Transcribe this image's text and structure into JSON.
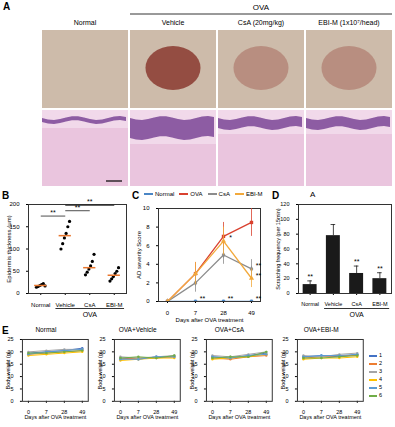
{
  "panel_a": {
    "panel": "A",
    "group": {
      "label": "OVA",
      "columns": [
        "Vehicle",
        "CsA (20mg/kg)",
        "EBI-M (1x10⁷/head)"
      ]
    },
    "columns": [
      "Normal",
      "Vehicle",
      "CsA (20mg/kg)",
      "EBI-M (1x10⁷/head)"
    ]
  },
  "chart_data": [
    {
      "panel": "B",
      "type": "scatter",
      "categories": [
        "Normal",
        "Vehicle",
        "CsA",
        "EBI-M"
      ],
      "points": [
        [
          14,
          16,
          18,
          20,
          22,
          17
        ],
        [
          100,
          112,
          125,
          135,
          150,
          162
        ],
        [
          42,
          48,
          55,
          62,
          72,
          88
        ],
        [
          28,
          33,
          38,
          45,
          50,
          58
        ]
      ],
      "medians": [
        18,
        130,
        58,
        41
      ],
      "color": "#000000",
      "ylim": [
        0,
        200
      ],
      "yticks": [
        0,
        50,
        100,
        150,
        200
      ],
      "y_label": "Epidermis thickness (μm)",
      "group": {
        "label": "OVA",
        "categories": [
          "Vehicle",
          "CsA",
          "EBI-M"
        ]
      },
      "comparisons": [
        {
          "pair": [
            "Normal",
            "Vehicle"
          ],
          "label": "**"
        },
        {
          "pair": [
            "Vehicle",
            "CsA"
          ],
          "label": "**"
        },
        {
          "pair": [
            "Vehicle",
            "EBI-M"
          ],
          "label": "**"
        }
      ]
    },
    {
      "panel": "C",
      "type": "line",
      "categories": [
        "0",
        "7",
        "28",
        "49"
      ],
      "legend": "top",
      "x_label": "Days after OVA treatment",
      "y_label": "AD severity Score",
      "ylim": [
        0,
        10
      ],
      "yticks": [
        0,
        2,
        4,
        6,
        8,
        10
      ],
      "series": [
        {
          "name": "Normal",
          "color": "#4a86c5",
          "marker": "circle",
          "values": [
            0,
            0,
            0,
            0
          ],
          "errors": [
            0,
            0,
            0,
            0
          ]
        },
        {
          "name": "OVA",
          "color": "#d9412f",
          "marker": "square",
          "values": [
            0,
            3,
            7,
            8.5
          ],
          "errors": [
            0,
            1.2,
            1.5,
            1.5
          ]
        },
        {
          "name": "CsA",
          "color": "#8c8c8c",
          "marker": "diamond",
          "values": [
            0,
            2,
            5,
            3.5
          ],
          "errors": [
            0,
            1,
            1,
            1
          ]
        },
        {
          "name": "EBI-M",
          "color": "#f2a93b",
          "marker": "triangle",
          "values": [
            0,
            3,
            6.5,
            2.5
          ],
          "errors": [
            0,
            1.2,
            1.5,
            1
          ]
        }
      ],
      "annotations": [
        {
          "text": "**",
          "series": "Normal",
          "category": "7"
        },
        {
          "text": "**",
          "series": "Normal",
          "category": "28"
        },
        {
          "text": "**",
          "series": "Normal",
          "category": "49"
        },
        {
          "text": "*",
          "series": "EBI-M",
          "category": "28"
        },
        {
          "text": "**",
          "series": "CsA",
          "category": "49"
        },
        {
          "text": "**",
          "series": "EBI-M",
          "category": "49"
        }
      ]
    },
    {
      "panel": "D",
      "type": "bar",
      "title": "A",
      "categories": [
        "Normal",
        "Vehicle",
        "CsA",
        "EBI-M"
      ],
      "values": [
        12,
        78,
        27,
        20
      ],
      "errors": [
        5,
        15,
        10,
        8
      ],
      "color": "#1a1a1a",
      "ylim": [
        0,
        120
      ],
      "yticks": [
        0,
        20,
        40,
        60,
        80,
        100,
        120
      ],
      "y_label": "Scratching frequency (per 15min)",
      "group": {
        "label": "OVA",
        "categories": [
          "Vehicle",
          "CsA",
          "EBI-M"
        ]
      },
      "annotations": [
        {
          "text": "**",
          "category": "Normal"
        },
        {
          "text": "**",
          "category": "CsA"
        },
        {
          "text": "**",
          "category": "EBI-M"
        }
      ]
    },
    {
      "panel": "E",
      "type": "line",
      "title": "Normal",
      "categories": [
        "0",
        "7",
        "28",
        "49"
      ],
      "marker": "circle",
      "x_label": "Days after OVA treatment",
      "y_label": "Body weight (g)",
      "ylim": [
        0,
        25
      ],
      "yticks": [
        0,
        5,
        10,
        15,
        20,
        25
      ],
      "series": [
        {
          "name": "1",
          "color": "#4472c4",
          "values": [
            19.5,
            20,
            20.5,
            21.5
          ]
        },
        {
          "name": "2",
          "color": "#ed7d31",
          "values": [
            19,
            19.5,
            20,
            20.5
          ]
        },
        {
          "name": "3",
          "color": "#a5a5a5",
          "values": [
            20,
            20.5,
            21,
            21
          ]
        },
        {
          "name": "4",
          "color": "#ffc000",
          "values": [
            18.5,
            19,
            19.5,
            20
          ]
        },
        {
          "name": "5",
          "color": "#5b9bd5",
          "values": [
            19,
            20,
            20.5,
            21
          ]
        },
        {
          "name": "6",
          "color": "#70ad47",
          "values": [
            19.5,
            19.5,
            20,
            20.5
          ]
        }
      ]
    },
    {
      "type": "line",
      "title": "OVA+Vehicle",
      "categories": [
        "0",
        "7",
        "28",
        "49"
      ],
      "marker": "circle",
      "x_label": "Days after OVA treatment",
      "y_label": "Body weight (g)",
      "ylim": [
        0,
        25
      ],
      "yticks": [
        0,
        5,
        10,
        15,
        20,
        25
      ],
      "series": [
        {
          "name": "1",
          "color": "#4472c4",
          "values": [
            17.5,
            17,
            18,
            18
          ]
        },
        {
          "name": "2",
          "color": "#ed7d31",
          "values": [
            17,
            17.5,
            17.5,
            18
          ]
        },
        {
          "name": "3",
          "color": "#a5a5a5",
          "values": [
            18,
            17.5,
            18,
            18.5
          ]
        },
        {
          "name": "4",
          "color": "#ffc000",
          "values": [
            16.5,
            17,
            17.5,
            17.5
          ]
        },
        {
          "name": "5",
          "color": "#5b9bd5",
          "values": [
            17,
            17,
            18,
            18
          ]
        },
        {
          "name": "6",
          "color": "#70ad47",
          "values": [
            17.5,
            18,
            17.5,
            18.5
          ]
        }
      ]
    },
    {
      "type": "line",
      "title": "OVA+CsA",
      "categories": [
        "0",
        "7",
        "28",
        "49"
      ],
      "marker": "circle",
      "x_label": "Days after OVA treatment",
      "y_label": "Body weight (g)",
      "ylim": [
        0,
        25
      ],
      "yticks": [
        0,
        5,
        10,
        15,
        20,
        25
      ],
      "series": [
        {
          "name": "1",
          "color": "#4472c4",
          "values": [
            18,
            17.5,
            18.5,
            19.5
          ]
        },
        {
          "name": "2",
          "color": "#ed7d31",
          "values": [
            17.5,
            17,
            18,
            18.5
          ]
        },
        {
          "name": "3",
          "color": "#a5a5a5",
          "values": [
            18.5,
            18,
            19,
            20
          ]
        },
        {
          "name": "4",
          "color": "#ffc000",
          "values": [
            17,
            17.5,
            18,
            19
          ]
        },
        {
          "name": "5",
          "color": "#5b9bd5",
          "values": [
            18,
            17.5,
            18.5,
            19
          ]
        },
        {
          "name": "6",
          "color": "#70ad47",
          "values": [
            17.5,
            18,
            18,
            20
          ]
        }
      ]
    },
    {
      "type": "line",
      "title": "OVA+EBI-M",
      "categories": [
        "0",
        "7",
        "28",
        "49"
      ],
      "marker": "circle",
      "legend": "right",
      "x_label": "Days after OVA treatment",
      "y_label": "Body weight (g)",
      "ylim": [
        0,
        25
      ],
      "yticks": [
        0,
        5,
        10,
        15,
        20,
        25
      ],
      "series": [
        {
          "name": "1",
          "color": "#4472c4",
          "values": [
            18,
            18.5,
            18,
            19
          ]
        },
        {
          "name": "2",
          "color": "#ed7d31",
          "values": [
            17.5,
            18,
            18.5,
            18.5
          ]
        },
        {
          "name": "3",
          "color": "#a5a5a5",
          "values": [
            18.5,
            18,
            19,
            19.5
          ]
        },
        {
          "name": "4",
          "color": "#ffc000",
          "values": [
            17,
            17.5,
            17.5,
            18
          ]
        },
        {
          "name": "5",
          "color": "#5b9bd5",
          "values": [
            18,
            18.5,
            18.5,
            19
          ]
        },
        {
          "name": "6",
          "color": "#70ad47",
          "values": [
            17.5,
            17.5,
            18,
            18.5
          ]
        }
      ]
    }
  ]
}
